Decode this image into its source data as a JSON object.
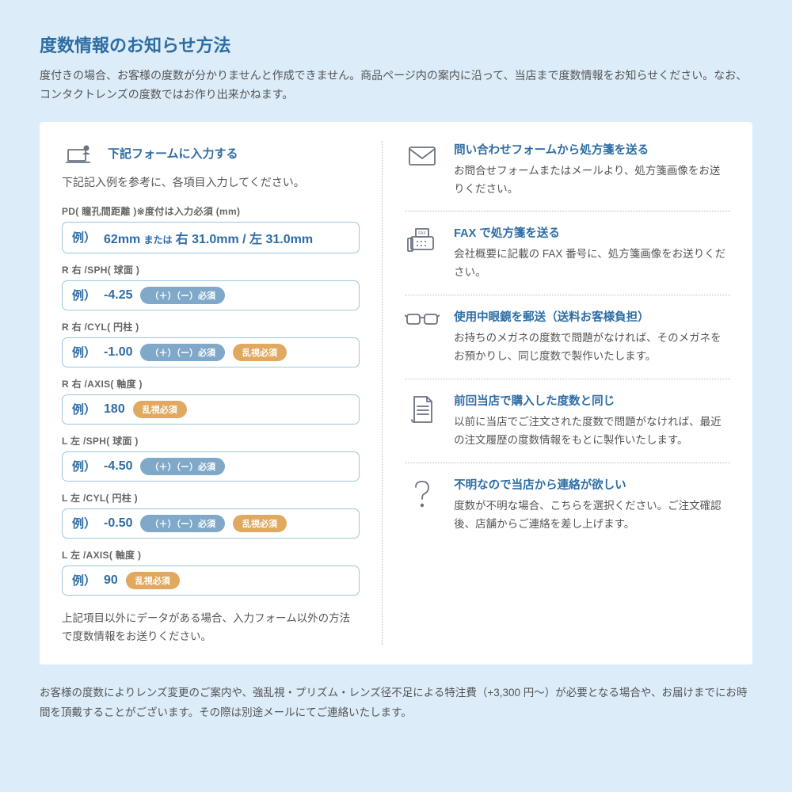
{
  "header": {
    "title": "度数情報のお知らせ方法",
    "description": "度付きの場合、お客様の度数が分かりませんと作成できません。商品ページ内の案内に沿って、当店まで度数情報をお知らせください。なお、コンタクトレンズの度数ではお作り出来かねます。"
  },
  "form": {
    "title": "下記フォームに入力する",
    "intro": "下記記入例を参考に、各項目入力してください。",
    "exLabel": "例）",
    "fields": [
      {
        "label": "PD( 瞳孔間距離 )※度付は入力必須 (mm)",
        "value": "62mm または 右 31.0mm / 左 31.0mm",
        "long": true,
        "badges": []
      },
      {
        "label": "R 右 /SPH( 球面 )",
        "value": "-4.25",
        "badges": [
          "blue"
        ]
      },
      {
        "label": "R 右 /CYL( 円柱 )",
        "value": "-1.00",
        "badges": [
          "blue",
          "orange"
        ]
      },
      {
        "label": "R 右 /AXIS( 軸度 )",
        "value": "180",
        "badges": [
          "orange"
        ]
      },
      {
        "label": "L 左 /SPH( 球面 )",
        "value": "-4.50",
        "badges": [
          "blue"
        ]
      },
      {
        "label": "L 左 /CYL( 円柱 )",
        "value": "-0.50",
        "badges": [
          "blue",
          "orange"
        ]
      },
      {
        "label": "L 左 /AXIS( 軸度 )",
        "value": "90",
        "badges": [
          "orange"
        ]
      }
    ],
    "badgeLabels": {
      "blue": "（＋）（ー）必須",
      "orange": "乱視必須"
    },
    "footer": "上記項目以外にデータがある場合、入力フォーム以外の方法で度数情報をお送りください。"
  },
  "methods": [
    {
      "icon": "envelope",
      "title": "問い合わせフォームから処方箋を送る",
      "desc": "お問合せフォームまたはメールより、処方箋画像をお送りください。"
    },
    {
      "icon": "fax",
      "title": "FAX で処方箋を送る",
      "desc": "会社概要に記載の FAX 番号に、処方箋画像をお送りください。"
    },
    {
      "icon": "glasses",
      "title": "使用中眼鏡を郵送（送料お客様負担）",
      "desc": "お持ちのメガネの度数で問題がなければ、そのメガネをお預かりし、同じ度数で製作いたします。"
    },
    {
      "icon": "document",
      "title": "前回当店で購入した度数と同じ",
      "desc": "以前に当店でご注文された度数で問題がなければ、最近の注文履歴の度数情報をもとに製作いたします。"
    },
    {
      "icon": "question",
      "title": "不明なので当店から連絡が欲しい",
      "desc": "度数が不明な場合、こちらを選択ください。ご注文確認後、店舗からご連絡を差し上げます。"
    }
  ],
  "footerNote": "お客様の度数によりレンズ変更のご案内や、強乱視・プリズム・レンズ径不足による特注費（+3,300 円～）が必要となる場合や、お届けまでにお時間を頂戴することがございます。その際は別途メールにてご連絡いたします。",
  "colors": {
    "pageBg": "#dcecf9",
    "panelBg": "#ffffff",
    "accent": "#2e6da4",
    "border": "#9ec5dc",
    "badgeBlue": "#7fa8c9",
    "badgeOrange": "#e0a95f",
    "textBody": "#555555"
  }
}
